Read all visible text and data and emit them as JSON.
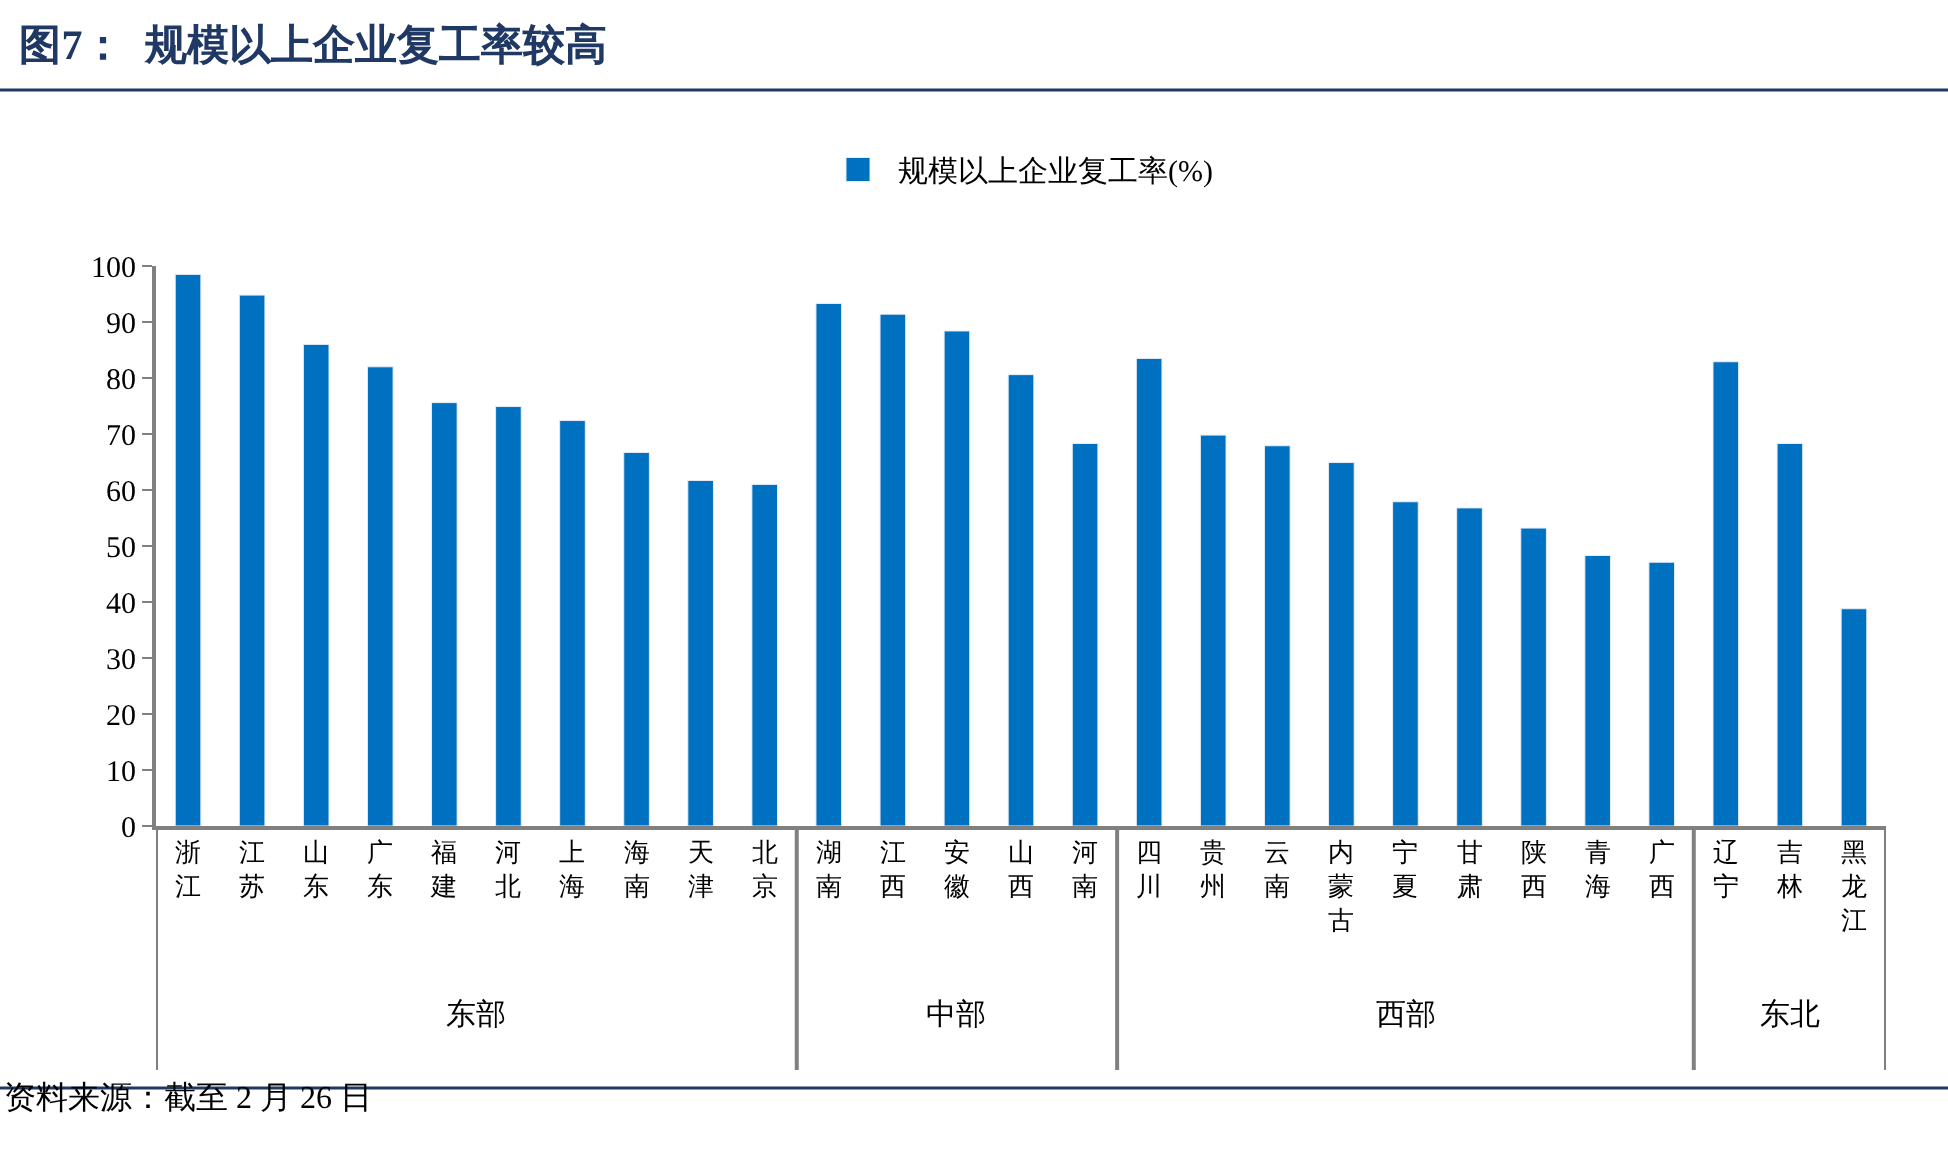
{
  "chart_data": {
    "type": "bar",
    "title": "图7：  规模以上企业复工率较高",
    "categories": [
      "浙江",
      "江苏",
      "山东",
      "广东",
      "福建",
      "河北",
      "上海",
      "海南",
      "天津",
      "北京",
      "湖南",
      "江西",
      "安徽",
      "山西",
      "河南",
      "四川",
      "贵州",
      "云南",
      "内蒙古",
      "宁夏",
      "甘肃",
      "陕西",
      "青海",
      "广西",
      "辽宁",
      "吉林",
      "黑龙江"
    ],
    "series": [
      {
        "name": "规模以上企业复工率(%)",
        "color": "#0070c0",
        "values": [
          98.5,
          94.8,
          86,
          82,
          75.6,
          74.9,
          72.4,
          66.7,
          61.7,
          61,
          93.3,
          91.4,
          88.4,
          80.6,
          68.3,
          83.5,
          69.8,
          67.9,
          64.9,
          57.9,
          56.8,
          53.2,
          48.3,
          47.1,
          82.9,
          68.3,
          38.8
        ]
      }
    ],
    "ylim": [
      0,
      100
    ],
    "yticks": [
      0,
      10,
      20,
      30,
      40,
      50,
      60,
      70,
      80,
      90,
      100
    ],
    "legend": "top",
    "annotations": [
      "东部",
      "中部",
      "西部",
      "东北",
      "资料来源：截至 2 月 26 日"
    ]
  }
}
